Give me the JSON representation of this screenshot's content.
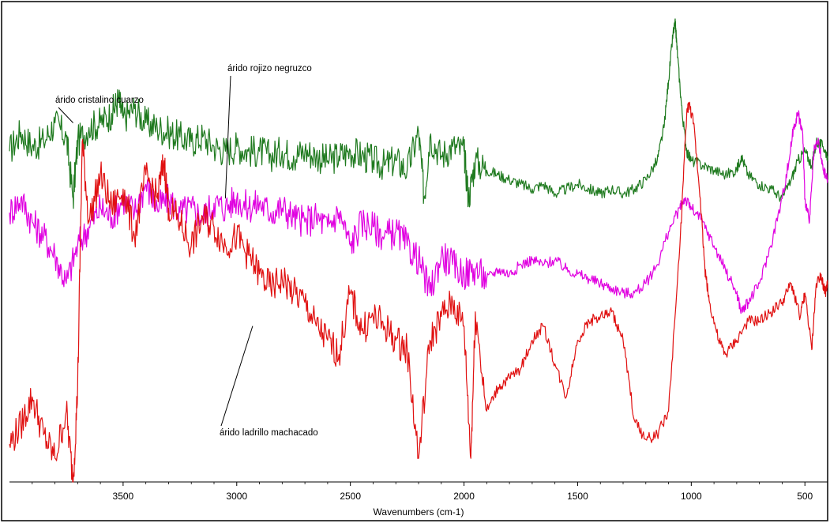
{
  "chart_data": {
    "type": "line",
    "title": "",
    "xlabel": "Wavenumbers (cm-1)",
    "ylabel": "",
    "x_reversed": true,
    "xlim": [
      4000,
      400
    ],
    "ylim": [
      0,
      1
    ],
    "x_ticks": [
      3500,
      3000,
      2500,
      2000,
      1500,
      1000,
      500
    ],
    "grid": false,
    "legend": "none",
    "series": [
      {
        "name": "",
        "color": "#1f7a1f",
        "points": [
          [
            4000,
            0.7
          ],
          [
            3950,
            0.74
          ],
          [
            3900,
            0.71
          ],
          [
            3850,
            0.72
          ],
          [
            3800,
            0.76
          ],
          [
            3750,
            0.73
          ],
          [
            3720,
            0.6
          ],
          [
            3700,
            0.72
          ],
          [
            3650,
            0.75
          ],
          [
            3600,
            0.76
          ],
          [
            3550,
            0.78
          ],
          [
            3520,
            0.81
          ],
          [
            3500,
            0.77
          ],
          [
            3450,
            0.79
          ],
          [
            3400,
            0.76
          ],
          [
            3350,
            0.75
          ],
          [
            3300,
            0.74
          ],
          [
            3250,
            0.73
          ],
          [
            3200,
            0.72
          ],
          [
            3150,
            0.73
          ],
          [
            3100,
            0.71
          ],
          [
            3050,
            0.7
          ],
          [
            3000,
            0.71
          ],
          [
            2950,
            0.7
          ],
          [
            2900,
            0.7
          ],
          [
            2850,
            0.69
          ],
          [
            2800,
            0.7
          ],
          [
            2750,
            0.69
          ],
          [
            2700,
            0.7
          ],
          [
            2650,
            0.69
          ],
          [
            2600,
            0.68
          ],
          [
            2550,
            0.69
          ],
          [
            2500,
            0.7
          ],
          [
            2450,
            0.69
          ],
          [
            2400,
            0.68
          ],
          [
            2350,
            0.67
          ],
          [
            2300,
            0.68
          ],
          [
            2250,
            0.66
          ],
          [
            2200,
            0.74
          ],
          [
            2175,
            0.6
          ],
          [
            2150,
            0.73
          ],
          [
            2100,
            0.69
          ],
          [
            2050,
            0.71
          ],
          [
            2000,
            0.7
          ],
          [
            1980,
            0.6
          ],
          [
            1950,
            0.68
          ],
          [
            1900,
            0.66
          ],
          [
            1850,
            0.65
          ],
          [
            1800,
            0.64
          ],
          [
            1750,
            0.63
          ],
          [
            1700,
            0.62
          ],
          [
            1650,
            0.63
          ],
          [
            1600,
            0.61
          ],
          [
            1550,
            0.62
          ],
          [
            1500,
            0.63
          ],
          [
            1450,
            0.62
          ],
          [
            1400,
            0.61
          ],
          [
            1350,
            0.62
          ],
          [
            1300,
            0.61
          ],
          [
            1250,
            0.62
          ],
          [
            1200,
            0.64
          ],
          [
            1150,
            0.68
          ],
          [
            1120,
            0.75
          ],
          [
            1100,
            0.85
          ],
          [
            1080,
            0.95
          ],
          [
            1070,
            0.97
          ],
          [
            1060,
            0.9
          ],
          [
            1040,
            0.78
          ],
          [
            1020,
            0.7
          ],
          [
            1000,
            0.68
          ],
          [
            950,
            0.67
          ],
          [
            900,
            0.66
          ],
          [
            850,
            0.65
          ],
          [
            800,
            0.66
          ],
          [
            780,
            0.69
          ],
          [
            750,
            0.65
          ],
          [
            700,
            0.63
          ],
          [
            650,
            0.62
          ],
          [
            600,
            0.6
          ],
          [
            560,
            0.64
          ],
          [
            530,
            0.68
          ],
          [
            500,
            0.7
          ],
          [
            470,
            0.67
          ],
          [
            450,
            0.72
          ],
          [
            420,
            0.71
          ],
          [
            400,
            0.69
          ]
        ]
      },
      {
        "name": "",
        "color": "#e000e0",
        "points": [
          [
            4000,
            0.57
          ],
          [
            3950,
            0.6
          ],
          [
            3900,
            0.55
          ],
          [
            3850,
            0.52
          ],
          [
            3800,
            0.48
          ],
          [
            3750,
            0.42
          ],
          [
            3700,
            0.5
          ],
          [
            3650,
            0.54
          ],
          [
            3600,
            0.58
          ],
          [
            3550,
            0.56
          ],
          [
            3500,
            0.6
          ],
          [
            3450,
            0.57
          ],
          [
            3400,
            0.63
          ],
          [
            3350,
            0.58
          ],
          [
            3300,
            0.6
          ],
          [
            3250,
            0.57
          ],
          [
            3200,
            0.58
          ],
          [
            3150,
            0.56
          ],
          [
            3100,
            0.59
          ],
          [
            3050,
            0.58
          ],
          [
            3000,
            0.6
          ],
          [
            2950,
            0.58
          ],
          [
            2900,
            0.59
          ],
          [
            2850,
            0.57
          ],
          [
            2800,
            0.58
          ],
          [
            2750,
            0.56
          ],
          [
            2700,
            0.55
          ],
          [
            2650,
            0.56
          ],
          [
            2600,
            0.54
          ],
          [
            2550,
            0.57
          ],
          [
            2500,
            0.5
          ],
          [
            2450,
            0.55
          ],
          [
            2400,
            0.54
          ],
          [
            2350,
            0.52
          ],
          [
            2300,
            0.53
          ],
          [
            2250,
            0.5
          ],
          [
            2200,
            0.47
          ],
          [
            2150,
            0.4
          ],
          [
            2100,
            0.48
          ],
          [
            2050,
            0.46
          ],
          [
            2000,
            0.44
          ],
          [
            1950,
            0.45
          ],
          [
            1900,
            0.43
          ],
          [
            1850,
            0.45
          ],
          [
            1800,
            0.44
          ],
          [
            1750,
            0.46
          ],
          [
            1700,
            0.47
          ],
          [
            1650,
            0.46
          ],
          [
            1600,
            0.47
          ],
          [
            1550,
            0.45
          ],
          [
            1500,
            0.44
          ],
          [
            1450,
            0.43
          ],
          [
            1400,
            0.42
          ],
          [
            1350,
            0.41
          ],
          [
            1300,
            0.4
          ],
          [
            1250,
            0.4
          ],
          [
            1200,
            0.42
          ],
          [
            1150,
            0.46
          ],
          [
            1100,
            0.53
          ],
          [
            1050,
            0.58
          ],
          [
            1030,
            0.6
          ],
          [
            1000,
            0.58
          ],
          [
            950,
            0.55
          ],
          [
            900,
            0.5
          ],
          [
            850,
            0.45
          ],
          [
            800,
            0.4
          ],
          [
            780,
            0.36
          ],
          [
            750,
            0.38
          ],
          [
            700,
            0.42
          ],
          [
            650,
            0.5
          ],
          [
            600,
            0.6
          ],
          [
            570,
            0.68
          ],
          [
            550,
            0.75
          ],
          [
            530,
            0.78
          ],
          [
            510,
            0.74
          ],
          [
            500,
            0.6
          ],
          [
            480,
            0.55
          ],
          [
            460,
            0.7
          ],
          [
            440,
            0.72
          ],
          [
            420,
            0.66
          ],
          [
            400,
            0.64
          ]
        ]
      },
      {
        "name": "",
        "color": "#e01010",
        "points": [
          [
            4000,
            0.08
          ],
          [
            3950,
            0.12
          ],
          [
            3900,
            0.18
          ],
          [
            3850,
            0.1
          ],
          [
            3800,
            0.05
          ],
          [
            3750,
            0.15
          ],
          [
            3720,
            0.0
          ],
          [
            3700,
            0.2
          ],
          [
            3680,
            0.72
          ],
          [
            3650,
            0.55
          ],
          [
            3600,
            0.65
          ],
          [
            3550,
            0.58
          ],
          [
            3500,
            0.62
          ],
          [
            3450,
            0.52
          ],
          [
            3400,
            0.65
          ],
          [
            3350,
            0.6
          ],
          [
            3320,
            0.68
          ],
          [
            3300,
            0.58
          ],
          [
            3250,
            0.55
          ],
          [
            3200,
            0.5
          ],
          [
            3150,
            0.56
          ],
          [
            3100,
            0.54
          ],
          [
            3050,
            0.5
          ],
          [
            3000,
            0.52
          ],
          [
            2950,
            0.48
          ],
          [
            2900,
            0.44
          ],
          [
            2850,
            0.41
          ],
          [
            2800,
            0.43
          ],
          [
            2750,
            0.4
          ],
          [
            2700,
            0.38
          ],
          [
            2650,
            0.33
          ],
          [
            2600,
            0.3
          ],
          [
            2550,
            0.27
          ],
          [
            2500,
            0.4
          ],
          [
            2450,
            0.32
          ],
          [
            2400,
            0.35
          ],
          [
            2350,
            0.33
          ],
          [
            2300,
            0.3
          ],
          [
            2250,
            0.28
          ],
          [
            2200,
            0.05
          ],
          [
            2150,
            0.3
          ],
          [
            2100,
            0.35
          ],
          [
            2050,
            0.38
          ],
          [
            2000,
            0.33
          ],
          [
            1970,
            0.05
          ],
          [
            1950,
            0.36
          ],
          [
            1900,
            0.15
          ],
          [
            1850,
            0.2
          ],
          [
            1800,
            0.22
          ],
          [
            1750,
            0.24
          ],
          [
            1700,
            0.3
          ],
          [
            1650,
            0.33
          ],
          [
            1600,
            0.25
          ],
          [
            1550,
            0.18
          ],
          [
            1500,
            0.3
          ],
          [
            1450,
            0.34
          ],
          [
            1400,
            0.35
          ],
          [
            1350,
            0.36
          ],
          [
            1300,
            0.3
          ],
          [
            1250,
            0.13
          ],
          [
            1200,
            0.09
          ],
          [
            1150,
            0.1
          ],
          [
            1100,
            0.15
          ],
          [
            1050,
            0.5
          ],
          [
            1020,
            0.78
          ],
          [
            1010,
            0.8
          ],
          [
            990,
            0.76
          ],
          [
            960,
            0.6
          ],
          [
            940,
            0.45
          ],
          [
            920,
            0.38
          ],
          [
            880,
            0.3
          ],
          [
            850,
            0.27
          ],
          [
            800,
            0.3
          ],
          [
            750,
            0.34
          ],
          [
            700,
            0.34
          ],
          [
            650,
            0.36
          ],
          [
            600,
            0.38
          ],
          [
            560,
            0.42
          ],
          [
            520,
            0.35
          ],
          [
            500,
            0.4
          ],
          [
            470,
            0.28
          ],
          [
            450,
            0.42
          ],
          [
            430,
            0.44
          ],
          [
            410,
            0.4
          ],
          [
            400,
            0.42
          ]
        ]
      }
    ],
    "annotations": [
      {
        "text": "árido cristalino cuarzo",
        "x": 3720,
        "y": 0.76
      },
      {
        "text": "árido rojizo negruzco",
        "x": 3050,
        "y": 0.6
      },
      {
        "text": "árido ladrillo machacado",
        "x": 2930,
        "y": 0.33
      }
    ]
  }
}
